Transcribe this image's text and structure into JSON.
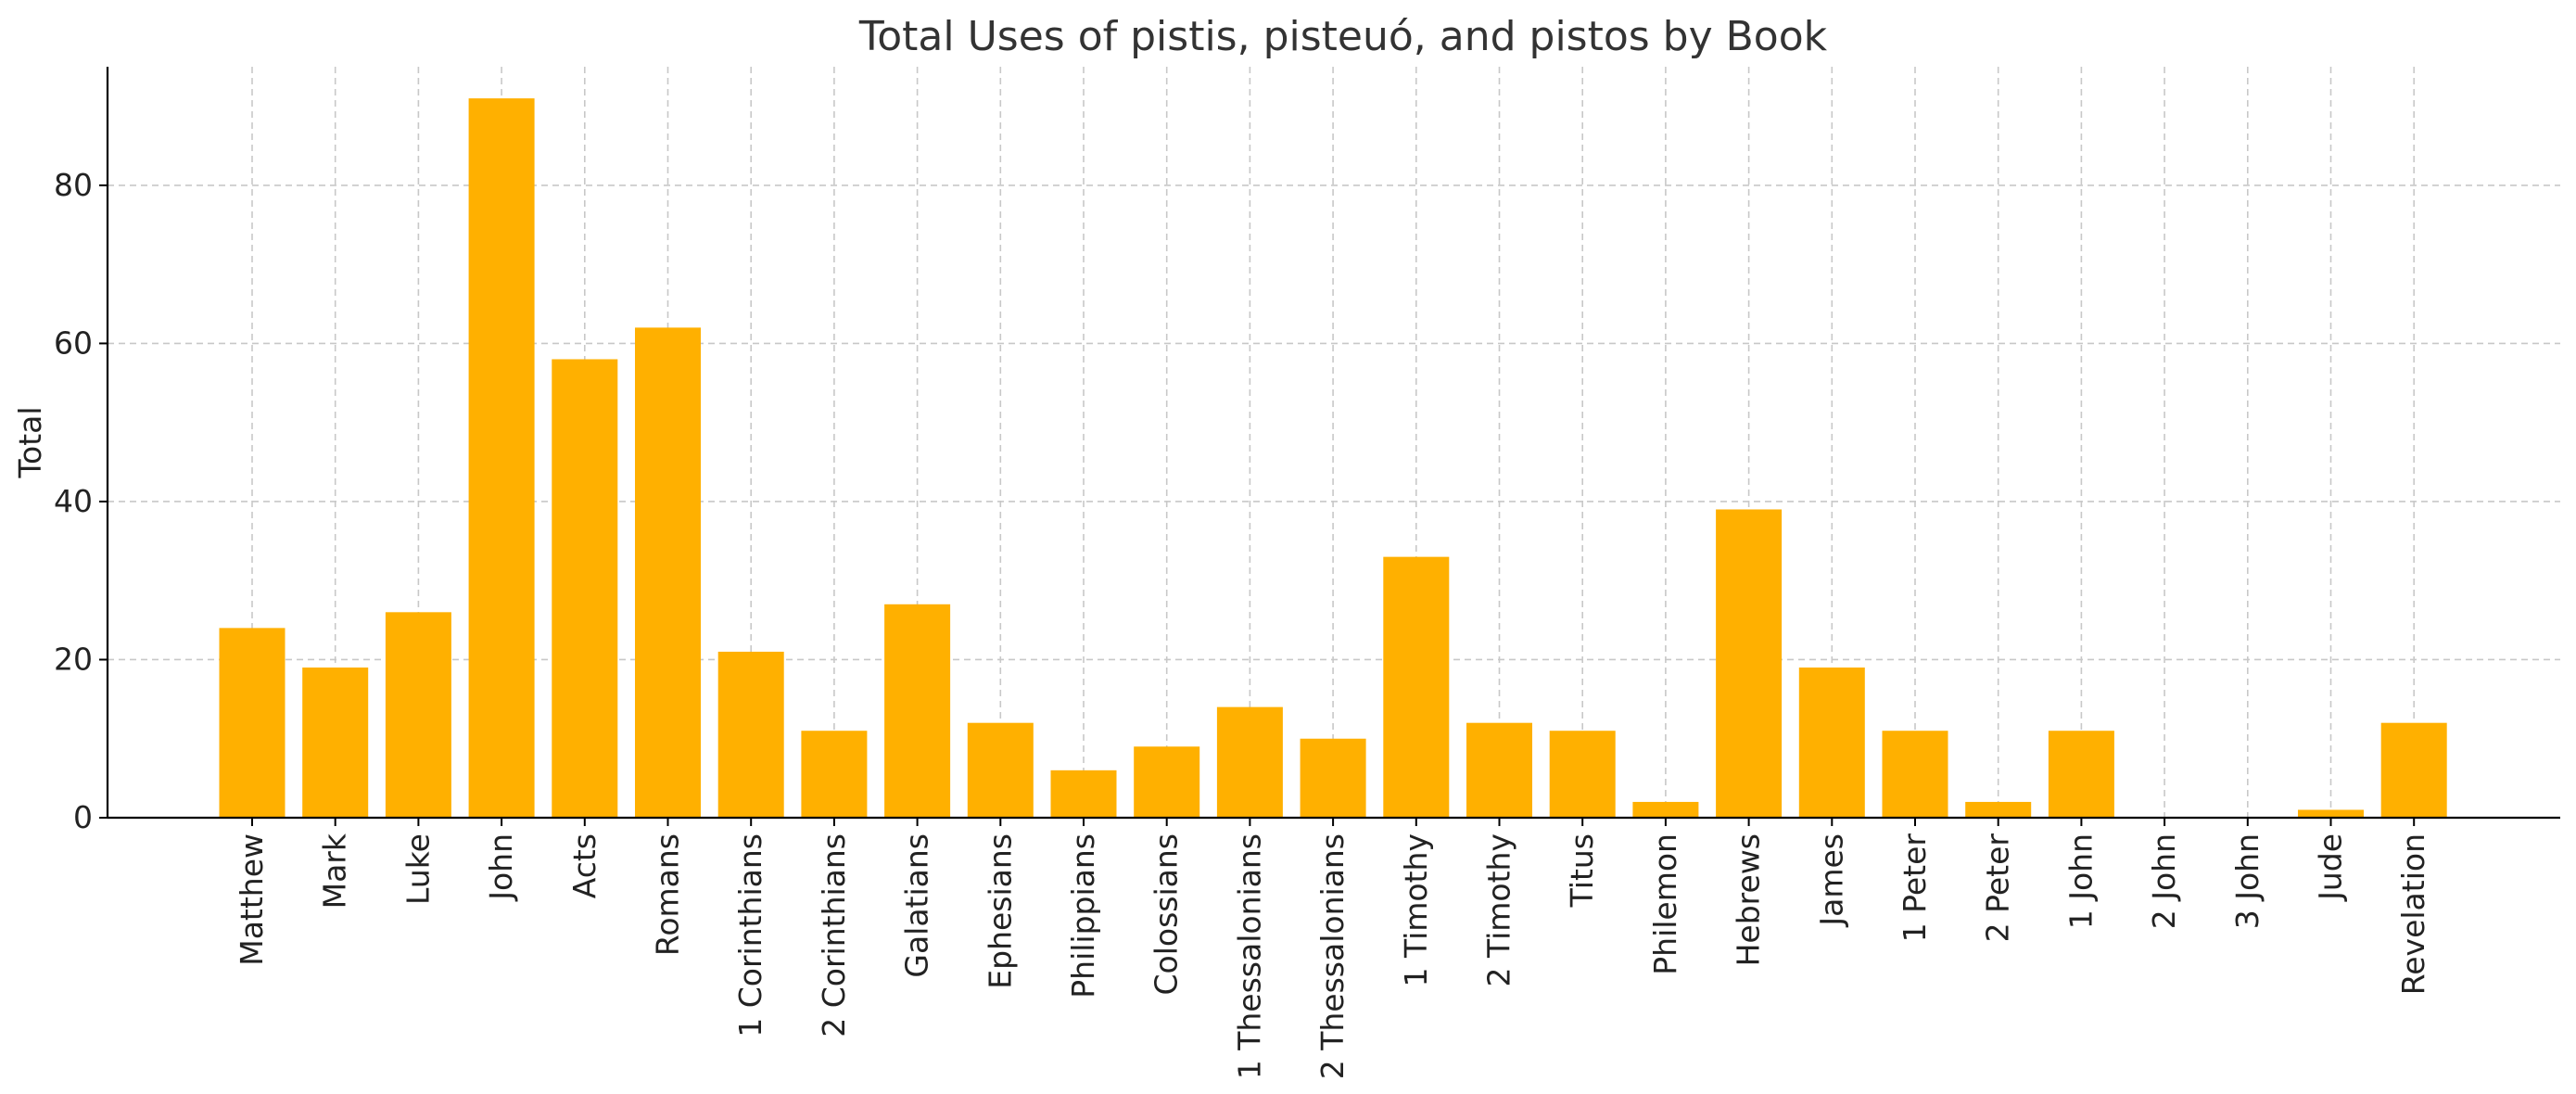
{
  "chart_data": {
    "type": "bar",
    "title": "Total Uses of pistis, pisteuó, and pistos by Book",
    "xlabel": "",
    "ylabel": "Total",
    "ylim": [
      0,
      95
    ],
    "yticks": [
      0,
      20,
      40,
      60,
      80
    ],
    "grid": true,
    "bar_color": "#FFB000",
    "categories": [
      "Matthew",
      "Mark",
      "Luke",
      "John",
      "Acts",
      "Romans",
      "1 Corinthians",
      "2 Corinthians",
      "Galatians",
      "Ephesians",
      "Philippians",
      "Colossians",
      "1 Thessalonians",
      "2 Thessalonians",
      "1 Timothy",
      "2 Timothy",
      "Titus",
      "Philemon",
      "Hebrews",
      "James",
      "1 Peter",
      "2 Peter",
      "1 John",
      "2 John",
      "3 John",
      "Jude",
      "Revelation"
    ],
    "values": [
      24,
      19,
      26,
      91,
      58,
      62,
      21,
      11,
      27,
      12,
      6,
      9,
      14,
      10,
      33,
      12,
      11,
      2,
      39,
      19,
      11,
      2,
      11,
      0,
      0,
      1,
      12
    ]
  }
}
